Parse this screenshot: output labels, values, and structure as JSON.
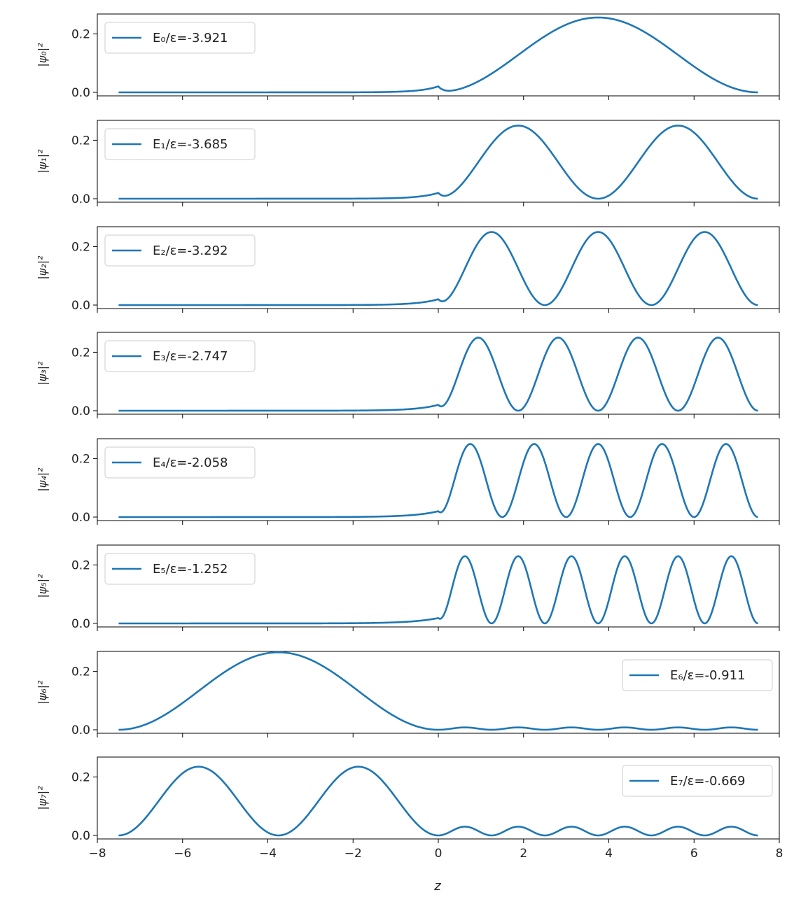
{
  "figure": {
    "xlabel": "z",
    "line_color": "#1f77b4"
  },
  "chart_data": [
    {
      "type": "line",
      "ylabel": "|ψ₀|²",
      "legend": {
        "label": "E₀/ε=-3.921",
        "loc": "upper-left"
      },
      "xlim": [
        -8,
        8
      ],
      "ylim": [
        0,
        0.25
      ],
      "xticks": [
        -8,
        -6,
        -4,
        -2,
        0,
        2,
        4,
        6,
        8
      ],
      "yticks": [
        0.0,
        0.2
      ],
      "ytick_labels": [
        "0.0",
        "0.2"
      ],
      "xtick_labels_shown": false,
      "series": [
        {
          "x_start": -7.5,
          "x_end": 7.5,
          "peaks": 1,
          "peak_value": 0.256,
          "well_peak_value": 0.0,
          "well_humps": 0
        }
      ]
    },
    {
      "type": "line",
      "ylabel": "|ψ₁|²",
      "legend": {
        "label": "E₁/ε=-3.685",
        "loc": "upper-left"
      },
      "xlim": [
        -8,
        8
      ],
      "ylim": [
        0,
        0.25
      ],
      "xticks": [
        -8,
        -6,
        -4,
        -2,
        0,
        2,
        4,
        6,
        8
      ],
      "yticks": [
        0.0,
        0.2
      ],
      "ytick_labels": [
        "0.0",
        "0.2"
      ],
      "xtick_labels_shown": false,
      "series": [
        {
          "x_start": -7.5,
          "x_end": 7.5,
          "peaks": 2,
          "peak_value": 0.25,
          "well_peak_value": 0.0,
          "well_humps": 0
        }
      ]
    },
    {
      "type": "line",
      "ylabel": "|ψ₂|²",
      "legend": {
        "label": "E₂/ε=-3.292",
        "loc": "upper-left"
      },
      "xlim": [
        -8,
        8
      ],
      "ylim": [
        0,
        0.25
      ],
      "xticks": [
        -8,
        -6,
        -4,
        -2,
        0,
        2,
        4,
        6,
        8
      ],
      "yticks": [
        0.0,
        0.2
      ],
      "ytick_labels": [
        "0.0",
        "0.2"
      ],
      "xtick_labels_shown": false,
      "series": [
        {
          "x_start": -7.5,
          "x_end": 7.5,
          "peaks": 3,
          "peak_value": 0.25,
          "well_peak_value": 0.0,
          "well_humps": 0
        }
      ]
    },
    {
      "type": "line",
      "ylabel": "|ψ₃|²",
      "legend": {
        "label": "E₃/ε=-2.747",
        "loc": "upper-left"
      },
      "xlim": [
        -8,
        8
      ],
      "ylim": [
        0,
        0.25
      ],
      "xticks": [
        -8,
        -6,
        -4,
        -2,
        0,
        2,
        4,
        6,
        8
      ],
      "yticks": [
        0.0,
        0.2
      ],
      "ytick_labels": [
        "0.0",
        "0.2"
      ],
      "xtick_labels_shown": false,
      "series": [
        {
          "x_start": -7.5,
          "x_end": 7.5,
          "peaks": 4,
          "peak_value": 0.25,
          "well_peak_value": 0.0,
          "well_humps": 0
        }
      ]
    },
    {
      "type": "line",
      "ylabel": "|ψ₄|²",
      "legend": {
        "label": "E₄/ε=-2.058",
        "loc": "upper-left"
      },
      "xlim": [
        -8,
        8
      ],
      "ylim": [
        0,
        0.25
      ],
      "xticks": [
        -8,
        -6,
        -4,
        -2,
        0,
        2,
        4,
        6,
        8
      ],
      "yticks": [
        0.0,
        0.2
      ],
      "ytick_labels": [
        "0.0",
        "0.2"
      ],
      "xtick_labels_shown": false,
      "series": [
        {
          "x_start": -7.5,
          "x_end": 7.5,
          "peaks": 5,
          "peak_value": 0.25,
          "well_peak_value": 0.0,
          "well_humps": 0
        }
      ]
    },
    {
      "type": "line",
      "ylabel": "|ψ₅|²",
      "legend": {
        "label": "E₅/ε=-1.252",
        "loc": "upper-left"
      },
      "xlim": [
        -8,
        8
      ],
      "ylim": [
        0,
        0.25
      ],
      "xticks": [
        -8,
        -6,
        -4,
        -2,
        0,
        2,
        4,
        6,
        8
      ],
      "yticks": [
        0.0,
        0.2
      ],
      "ytick_labels": [
        "0.0",
        "0.2"
      ],
      "xtick_labels_shown": false,
      "series": [
        {
          "x_start": -7.5,
          "x_end": 7.5,
          "peaks": 6,
          "peak_value": 0.23,
          "well_peak_value": 0.0,
          "well_humps": 0
        }
      ]
    },
    {
      "type": "line",
      "ylabel": "|ψ₆|²",
      "legend": {
        "label": "E₆/ε=-0.911",
        "loc": "upper-right"
      },
      "xlim": [
        -8,
        8
      ],
      "ylim": [
        0,
        0.25
      ],
      "xticks": [
        -8,
        -6,
        -4,
        -2,
        0,
        2,
        4,
        6,
        8
      ],
      "yticks": [
        0.0,
        0.2
      ],
      "ytick_labels": [
        "0.0",
        "0.2"
      ],
      "xtick_labels_shown": false,
      "series": [
        {
          "x_start": -7.5,
          "x_end": 7.5,
          "peaks": 6,
          "peak_value": 0.008,
          "well_peak_value": 0.265,
          "well_humps": 1
        }
      ]
    },
    {
      "type": "line",
      "ylabel": "|ψ₇|²",
      "legend": {
        "label": "E₇/ε=-0.669",
        "loc": "upper-right"
      },
      "xlim": [
        -8,
        8
      ],
      "ylim": [
        0,
        0.25
      ],
      "xticks": [
        -8,
        -6,
        -4,
        -2,
        0,
        2,
        4,
        6,
        8
      ],
      "yticks": [
        0.0,
        0.2
      ],
      "ytick_labels": [
        "0.0",
        "0.2"
      ],
      "xtick_labels_shown": true,
      "xtick_labels": [
        "−8",
        "−6",
        "−4",
        "−2",
        "0",
        "2",
        "4",
        "6",
        "8"
      ],
      "series": [
        {
          "x_start": -7.5,
          "x_end": 7.5,
          "peaks": 6,
          "peak_value": 0.03,
          "well_peak_value": 0.235,
          "well_humps": 2
        }
      ]
    }
  ]
}
